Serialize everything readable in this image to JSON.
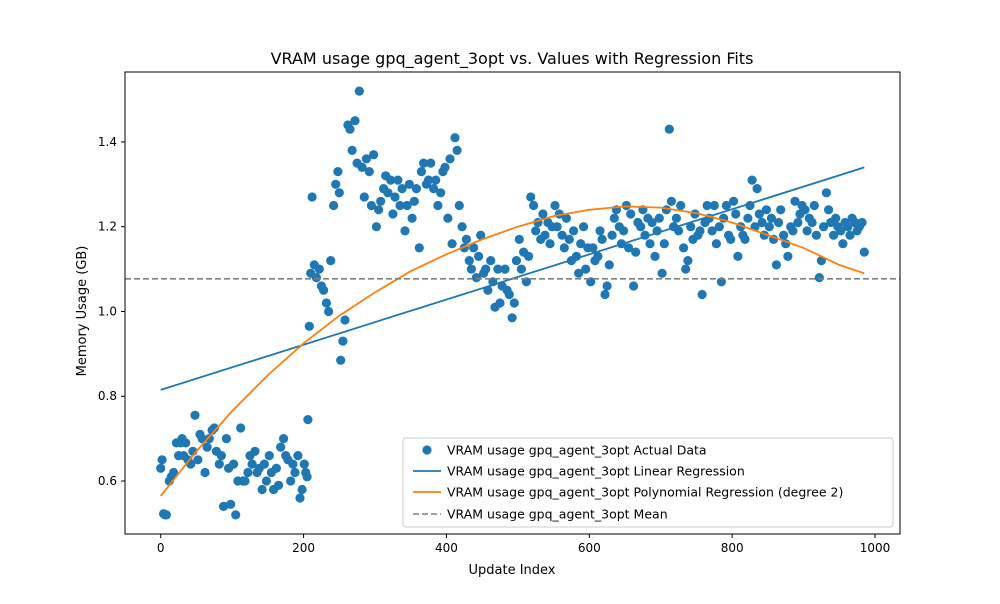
{
  "chart_data": {
    "type": "scatter",
    "title": "VRAM usage gpq_agent_3opt vs. Values with Regression Fits",
    "xlabel": "Update Index",
    "ylabel": "Memory Usage (GB)",
    "xlim": [
      -50,
      1035
    ],
    "ylim": [
      0.475,
      1.565
    ],
    "xticks": [
      0,
      200,
      400,
      600,
      800,
      1000
    ],
    "xtick_labels": [
      "0",
      "200",
      "400",
      "600",
      "800",
      "1000"
    ],
    "yticks": [
      0.6,
      0.8,
      1.0,
      1.2,
      1.4
    ],
    "ytick_labels": [
      "0.6",
      "0.8",
      "1.0",
      "1.2",
      "1.4"
    ],
    "grid": false,
    "legend_position": "lower-right",
    "legend": [
      "VRAM usage gpq_agent_3opt Actual Data",
      "VRAM usage gpq_agent_3opt Linear Regression",
      "VRAM usage gpq_agent_3opt Polynomial Regression (degree 2)",
      "VRAM usage gpq_agent_3opt Mean"
    ],
    "colors": {
      "scatter": "#1f77b4",
      "linear": "#1f77b4",
      "poly": "#ff7f0e",
      "mean": "#808080"
    },
    "linear_fit": {
      "x": [
        0,
        985
      ],
      "y": [
        0.815,
        1.34
      ]
    },
    "poly_fit": {
      "x": [
        0,
        50,
        100,
        150,
        200,
        250,
        300,
        350,
        400,
        450,
        500,
        550,
        600,
        650,
        700,
        750,
        800,
        850,
        900,
        950,
        985
      ],
      "y": [
        0.565,
        0.67,
        0.765,
        0.85,
        0.925,
        0.99,
        1.045,
        1.095,
        1.135,
        1.17,
        1.2,
        1.225,
        1.24,
        1.248,
        1.245,
        1.232,
        1.21,
        1.18,
        1.15,
        1.11,
        1.09
      ]
    },
    "mean": 1.077,
    "series": [
      {
        "name": "VRAM usage gpq_agent_3opt Actual Data",
        "x": [
          0,
          2,
          4,
          6,
          8,
          12,
          15,
          18,
          22,
          25,
          28,
          30,
          32,
          35,
          38,
          42,
          45,
          48,
          52,
          55,
          58,
          62,
          65,
          68,
          72,
          75,
          78,
          82,
          85,
          88,
          92,
          95,
          98,
          102,
          105,
          108,
          112,
          115,
          118,
          122,
          125,
          128,
          132,
          135,
          138,
          142,
          145,
          148,
          152,
          155,
          158,
          162,
          165,
          168,
          172,
          175,
          178,
          182,
          185,
          188,
          192,
          195,
          198,
          201,
          203,
          205,
          206,
          208,
          210,
          212,
          215,
          218,
          222,
          225,
          228,
          232,
          235,
          238,
          242,
          245,
          248,
          250,
          252,
          255,
          258,
          262,
          265,
          268,
          272,
          275,
          278,
          282,
          285,
          288,
          292,
          295,
          298,
          302,
          305,
          308,
          312,
          315,
          318,
          322,
          325,
          328,
          332,
          335,
          338,
          342,
          345,
          348,
          352,
          355,
          358,
          362,
          365,
          368,
          372,
          375,
          378,
          382,
          385,
          388,
          392,
          395,
          398,
          402,
          405,
          408,
          412,
          415,
          418,
          422,
          425,
          428,
          432,
          435,
          438,
          442,
          445,
          448,
          452,
          455,
          458,
          462,
          465,
          468,
          472,
          475,
          478,
          482,
          485,
          488,
          492,
          495,
          498,
          502,
          505,
          508,
          512,
          515,
          518,
          522,
          525,
          528,
          532,
          535,
          538,
          542,
          545,
          548,
          552,
          555,
          558,
          562,
          565,
          568,
          572,
          575,
          578,
          582,
          585,
          588,
          592,
          595,
          598,
          602,
          605,
          608,
          612,
          615,
          618,
          622,
          625,
          628,
          632,
          635,
          638,
          642,
          645,
          648,
          652,
          655,
          658,
          662,
          665,
          668,
          672,
          675,
          678,
          682,
          685,
          688,
          692,
          695,
          698,
          702,
          705,
          708,
          712,
          715,
          718,
          722,
          725,
          728,
          732,
          735,
          738,
          742,
          745,
          748,
          752,
          755,
          758,
          762,
          765,
          768,
          772,
          775,
          778,
          782,
          785,
          788,
          792,
          795,
          798,
          802,
          805,
          808,
          812,
          815,
          818,
          822,
          825,
          828,
          832,
          835,
          838,
          842,
          845,
          848,
          852,
          855,
          858,
          862,
          865,
          868,
          872,
          875,
          878,
          882,
          885,
          888,
          892,
          895,
          898,
          902,
          905,
          908,
          912,
          915,
          918,
          922,
          925,
          928,
          932,
          935,
          938,
          942,
          945,
          948,
          952,
          955,
          958,
          962,
          965,
          968,
          972,
          975,
          978,
          982,
          985
        ],
        "y": [
          0.63,
          0.65,
          0.523,
          0.52,
          0.52,
          0.6,
          0.61,
          0.62,
          0.69,
          0.66,
          0.69,
          0.7,
          0.66,
          0.69,
          0.65,
          0.64,
          0.67,
          0.755,
          0.65,
          0.71,
          0.7,
          0.62,
          0.68,
          0.7,
          0.72,
          0.725,
          0.67,
          0.64,
          0.66,
          0.54,
          0.7,
          0.63,
          0.545,
          0.64,
          0.52,
          0.6,
          0.725,
          0.6,
          0.6,
          0.62,
          0.66,
          0.64,
          0.67,
          0.62,
          0.63,
          0.58,
          0.64,
          0.6,
          0.66,
          0.62,
          0.58,
          0.63,
          0.59,
          0.68,
          0.7,
          0.66,
          0.65,
          0.6,
          0.64,
          0.62,
          0.66,
          0.56,
          0.58,
          0.64,
          0.62,
          0.61,
          0.745,
          0.965,
          1.09,
          1.27,
          1.11,
          1.08,
          1.1,
          1.06,
          1.05,
          1.02,
          1.0,
          1.12,
          1.25,
          1.3,
          1.33,
          1.28,
          0.885,
          0.93,
          0.98,
          1.44,
          1.43,
          1.38,
          1.45,
          1.35,
          1.52,
          1.34,
          1.27,
          1.36,
          1.33,
          1.25,
          1.37,
          1.2,
          1.24,
          1.26,
          1.29,
          1.32,
          1.28,
          1.31,
          1.23,
          1.27,
          1.31,
          1.25,
          1.29,
          1.19,
          1.25,
          1.3,
          1.22,
          1.26,
          1.29,
          1.15,
          1.33,
          1.35,
          1.3,
          1.31,
          1.35,
          1.29,
          1.31,
          1.25,
          1.28,
          1.33,
          1.34,
          1.22,
          1.36,
          1.16,
          1.41,
          1.38,
          1.25,
          1.2,
          1.15,
          1.17,
          1.12,
          1.1,
          1.15,
          1.08,
          1.13,
          1.18,
          1.09,
          1.1,
          1.05,
          1.12,
          1.07,
          1.01,
          1.1,
          1.02,
          1.06,
          1.1,
          1.05,
          1.04,
          0.985,
          1.02,
          1.12,
          1.17,
          1.1,
          1.14,
          1.07,
          1.13,
          1.27,
          1.25,
          1.19,
          1.21,
          1.17,
          1.23,
          1.18,
          1.21,
          1.16,
          1.2,
          1.25,
          1.2,
          1.23,
          1.18,
          1.15,
          1.22,
          1.17,
          1.12,
          1.19,
          1.13,
          1.09,
          1.16,
          1.2,
          1.1,
          1.15,
          1.07,
          1.15,
          1.12,
          1.13,
          1.19,
          1.17,
          1.04,
          1.06,
          1.11,
          1.18,
          1.22,
          1.24,
          1.2,
          1.16,
          1.19,
          1.25,
          1.15,
          1.23,
          1.06,
          1.14,
          1.21,
          1.2,
          1.24,
          1.18,
          1.22,
          1.16,
          1.21,
          1.13,
          1.19,
          1.22,
          1.09,
          1.16,
          1.24,
          1.43,
          1.26,
          1.2,
          1.22,
          1.19,
          1.25,
          1.15,
          1.1,
          1.12,
          1.2,
          1.17,
          1.23,
          1.18,
          1.19,
          1.04,
          1.21,
          1.25,
          1.22,
          1.19,
          1.25,
          1.16,
          1.2,
          1.07,
          1.22,
          1.25,
          1.18,
          1.17,
          1.26,
          1.23,
          1.13,
          1.2,
          1.18,
          1.17,
          1.22,
          1.25,
          1.31,
          1.2,
          1.29,
          1.23,
          1.21,
          1.18,
          1.24,
          1.2,
          1.22,
          1.17,
          1.11,
          1.21,
          1.24,
          1.18,
          1.16,
          1.13,
          1.2,
          1.19,
          1.26,
          1.21,
          1.23,
          1.25,
          1.24,
          1.19,
          1.22,
          1.21,
          1.25,
          1.18,
          1.08,
          1.12,
          1.2,
          1.28,
          1.24,
          1.21,
          1.18,
          1.22,
          1.2,
          1.19,
          1.16,
          1.21,
          1.2,
          1.18,
          1.22,
          1.21,
          1.19,
          1.2,
          1.21,
          1.14
        ]
      }
    ]
  }
}
